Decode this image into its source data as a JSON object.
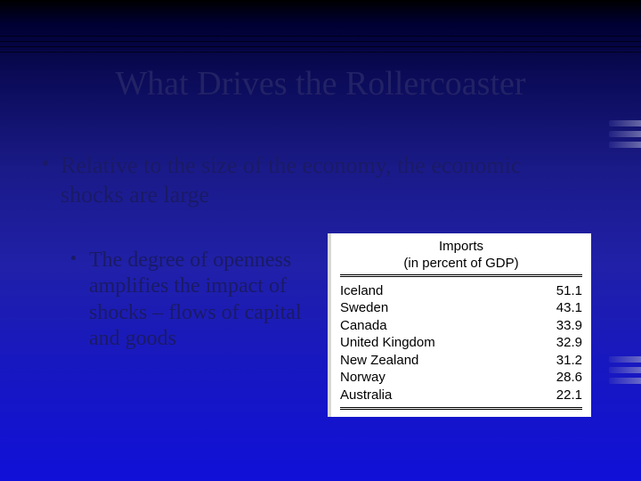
{
  "title": "What Drives the Rollercoaster",
  "bullet1": "Relative to the size of the economy, the economic shocks are large",
  "bullet2": "The degree of openness amplifies the impact of shocks – flows of capital and goods",
  "table": {
    "title_line1": "Imports",
    "title_line2": "(in percent of GDP)",
    "rows": [
      {
        "country": "Iceland",
        "value": "51.1"
      },
      {
        "country": "Sweden",
        "value": "43.1"
      },
      {
        "country": "Canada",
        "value": "33.9"
      },
      {
        "country": "United Kingdom",
        "value": "32.9"
      },
      {
        "country": "New Zealand",
        "value": "31.2"
      },
      {
        "country": "Norway",
        "value": "28.6"
      },
      {
        "country": "Australia",
        "value": "22.1"
      }
    ]
  },
  "colors": {
    "bg_top": "#000000",
    "bg_bottom": "#1010d8",
    "text": "#1a1a66",
    "table_bg": "#ffffff",
    "table_text": "#000000"
  },
  "fonts": {
    "title_size_pt": 28,
    "body_size_pt": 20,
    "table_size_pt": 11
  }
}
